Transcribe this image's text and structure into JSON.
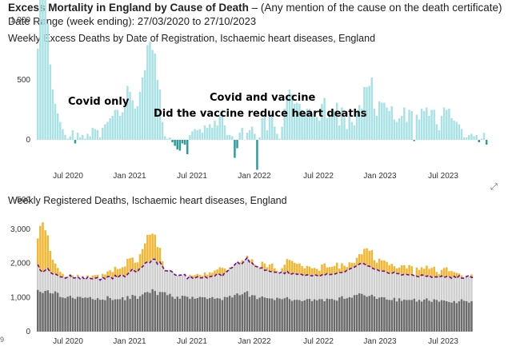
{
  "header": {
    "title": "Excess Mortality in England by Cause of Death",
    "dash": " – ",
    "note": "(Any mention of the cause on the death certificate)",
    "date_range": "Date Range (week ending): 27/03/2020 to 27/10/2023"
  },
  "icons": {
    "expand": "expand-icon"
  },
  "colors": {
    "excess_positive": "#a9e2e4",
    "excess_negative": "#2a9d9a",
    "expected": "#6b6b6b",
    "registered": "#cfcfcf",
    "above": "#f2b632",
    "baseline_line": "#6a0d91"
  },
  "chart_data": [
    {
      "type": "bar",
      "title": "Weekly Excess Deaths by Date of Registration, Ischaemic heart diseases, England",
      "ylim": [
        -500,
        1500
      ],
      "yticks": [
        "1,500",
        "1,000",
        "500",
        "0",
        "-500"
      ],
      "xtick_labels": [
        "Jul 2020",
        "Jan 2021",
        "Jul 2021",
        "Jan 2022",
        "Jul 2022",
        "Jan 2023",
        "Jul 2023"
      ],
      "annotations": [
        "Covid only",
        "Covid and vaccine",
        "Did the vaccine reduce heart deaths"
      ],
      "values": [
        760,
        1300,
        1460,
        1170,
        970,
        630,
        420,
        300,
        220,
        150,
        90,
        40,
        10,
        30,
        80,
        -30,
        60,
        20,
        40,
        10,
        50,
        30,
        100,
        90,
        80,
        20,
        100,
        130,
        150,
        180,
        200,
        250,
        250,
        200,
        230,
        300,
        450,
        400,
        330,
        260,
        280,
        400,
        520,
        580,
        790,
        820,
        750,
        720,
        500,
        420,
        150,
        30,
        10,
        20,
        -20,
        -50,
        -80,
        -90,
        -30,
        -40,
        -120,
        40,
        70,
        90,
        80,
        90,
        60,
        120,
        100,
        130,
        100,
        160,
        120,
        210,
        250,
        120,
        40,
        40,
        30,
        -150,
        -70,
        60,
        100,
        0,
        60,
        80,
        110,
        50,
        -250,
        20,
        180,
        200,
        80,
        200,
        240,
        110,
        50,
        10,
        110,
        260,
        350,
        420,
        380,
        300,
        310,
        300,
        250,
        220,
        260,
        260,
        220,
        200,
        190,
        160,
        300,
        350,
        180,
        220,
        220,
        240,
        310,
        120,
        270,
        190,
        90,
        200,
        150,
        120,
        230,
        290,
        260,
        440,
        440,
        450,
        520,
        260,
        200,
        320,
        310,
        310,
        270,
        240,
        280,
        170,
        150,
        180,
        200,
        270,
        150,
        250,
        240,
        -10,
        210,
        170,
        260,
        240,
        270,
        200,
        250,
        250,
        130,
        80,
        200,
        270,
        250,
        260,
        180,
        160,
        150,
        130,
        90,
        20,
        20,
        40,
        50,
        30,
        40,
        -20,
        10,
        60,
        -40
      ]
    },
    {
      "type": "bar",
      "title": "Weekly Registered Deaths, Ischaemic heart diseases, England",
      "ylim": [
        0,
        3000
      ],
      "yticks": [
        "3,000",
        "2,000",
        "1,000",
        "0"
      ],
      "xtick_labels": [
        "Jul 2020",
        "Jan 2021",
        "Jul 2021",
        "Jan 2022",
        "Jul 2022",
        "Jan 2023",
        "Jul 2023"
      ],
      "series": [
        {
          "values": [
            1224,
            1168,
            1133,
            1194,
            1213,
            1130,
            1118,
            1180,
            1138,
            1015,
            1000,
            980,
            1023,
            1050,
            991,
            958,
            1021,
            1018,
            986,
            1002,
            992,
            1014,
            954,
            933,
            982,
            934,
            941,
            922,
            1040,
            983,
            924,
            947,
            949,
            952,
            1008,
            920,
            1042,
            958,
            1076,
            1052,
            960,
            1039,
            1091,
            1148,
            1161,
            1134,
            1243,
            1192,
            1074,
            1163,
            1158,
            1156,
            1070,
            1108,
            1025,
            962,
            1028,
            965,
            1055,
            1043,
            1022,
            959,
            1021,
            965,
            982,
            1018,
            1009,
            1009,
            958,
            986,
            1012,
            962,
            982,
            972,
            924,
            1017,
            1010,
            1051,
            1002,
            1075,
            1121,
            1067,
            1096,
            1151,
            1185,
            1020,
            1073,
            1063,
            954,
            995,
            1031,
            1000,
            982,
            972,
            970,
            924,
            994,
            970,
            951,
            979,
            1011,
            955,
            902,
            932,
            934,
            925,
            891,
            916,
            956,
            961,
            895,
            947,
            917,
            955,
            954,
            892,
            969,
            955,
            960,
            929,
            908,
            1003,
            1038,
            961,
            978,
            1012,
            994,
            1071,
            1078,
            1123,
            1106,
            1064,
            1024,
            1046,
            1082,
            1031,
            960,
            999,
            1011,
            1006,
            941,
            931,
            924,
            991,
            884,
            979,
            901,
            938,
            926,
            930,
            928,
            966,
            879,
            933,
            882,
            939,
            974,
            906,
            873,
            949,
            929,
            878,
            922,
            912,
            889,
            868,
            850,
            896,
            835,
            889,
            948,
            904,
            889,
            850,
            893
          ]
        },
        {
          "values": [
            1969,
            1797,
            1743,
            1799,
            1852,
            1738,
            1688,
            1695,
            1647,
            1604,
            1600,
            1564,
            1600,
            1650,
            1568,
            1576,
            1607,
            1545,
            1589,
            1520,
            1599,
            1560,
            1543,
            1565,
            1586,
            1508,
            1593,
            1544,
            1612,
            1620,
            1548,
            1649,
            1582,
            1643,
            1659,
            1607,
            1683,
            1752,
            1839,
            1760,
            1751,
            1869,
            1900,
            2005,
            2046,
            2021,
            2122,
            2121,
            1978,
            2036,
            1910,
            1785,
            1778,
            1791,
            1747,
            1666,
            1640,
            1655,
            1659,
            1675,
            1555,
            1626,
            1568,
            1567,
            1609,
            1575,
            1577,
            1614,
            1568,
            1607,
            1626,
            1631,
            1700,
            1676,
            1620,
            1733,
            1764,
            1843,
            1876,
            1960,
            2046,
            1974,
            1995,
            2090,
            2165,
            2017,
            2011,
            1916,
            1905,
            1860,
            1868,
            1794,
            1806,
            1765,
            1752,
            1743,
            1737,
            1716,
            1751,
            1701,
            1777,
            1680,
            1693,
            1717,
            1677,
            1699,
            1669,
            1636,
            1664,
            1646,
            1632,
            1669,
            1646,
            1622,
            1666,
            1648,
            1700,
            1672,
            1679,
            1684,
            1712,
            1728,
            1734,
            1741,
            1802,
            1831,
            1867,
            1891,
            1934,
            1981,
            2005,
            1986,
            1928,
            1917,
            1866,
            1834,
            1819,
            1779,
            1776,
            1773,
            1738,
            1706,
            1708,
            1745,
            1703,
            1698,
            1657,
            1678,
            1677,
            1655,
            1670,
            1638,
            1626,
            1601,
            1665,
            1640,
            1618,
            1652,
            1587,
            1602,
            1606,
            1595,
            1632,
            1587,
            1616,
            1613,
            1561,
            1621,
            1563,
            1638,
            1566,
            1567,
            1611,
            1647,
            1585,
            1595
          ]
        },
        {
          "values": [
            2729,
            3097,
            3203,
            2969,
            2822,
            2368,
            2108,
            1995,
            1867,
            1754,
            1690,
            1604,
            1610,
            1680,
            1648,
            1576,
            1667,
            1565,
            1629,
            1530,
            1649,
            1590,
            1643,
            1655,
            1666,
            1528,
            1693,
            1674,
            1762,
            1800,
            1748,
            1899,
            1832,
            1843,
            1889,
            1907,
            2133,
            2152,
            2169,
            2020,
            2031,
            2269,
            2420,
            2585,
            2836,
            2841,
            2872,
            2841,
            2478,
            2456,
            2060,
            1815,
            1788,
            1811,
            1747,
            1666,
            1640,
            1655,
            1659,
            1675,
            1555,
            1666,
            1638,
            1657,
            1689,
            1665,
            1637,
            1734,
            1668,
            1737,
            1726,
            1791,
            1820,
            1886,
            1870,
            1853,
            1804,
            1883,
            1906,
            1960,
            2046,
            2034,
            2095,
            2090,
            2225,
            2097,
            2121,
            1966,
            1905,
            1880,
            2048,
            1994,
            1886,
            1965,
            1992,
            1853,
            1787,
            1726,
            1861,
            1961,
            2127,
            2100,
            2073,
            2017,
            1987,
            1999,
            1919,
            1856,
            1924,
            1906,
            1852,
            1869,
            1836,
            1782,
            1966,
            1998,
            1880,
            1892,
            1899,
            1924,
            2022,
            1848,
            2004,
            1931,
            1892,
            2031,
            2017,
            2011,
            2164,
            2271,
            2265,
            2426,
            2446,
            2367,
            2386,
            2094,
            2019,
            2139,
            2086,
            2083,
            2043,
            1946,
            1988,
            1915,
            1853,
            1878,
            1945,
            1948,
            1853,
            1948,
            1917,
            1655,
            1880,
            1808,
            1886,
            1841,
            1935,
            1840,
            1868,
            1902,
            1748,
            1682,
            1806,
            1865,
            1882,
            1773,
            1776,
            1745,
            1722,
            1706,
            1651,
            1581,
            1638,
            1610,
            1676,
            1584,
            1584,
            1670,
            1587,
            1707,
            1585
          ]
        }
      ]
    }
  ]
}
